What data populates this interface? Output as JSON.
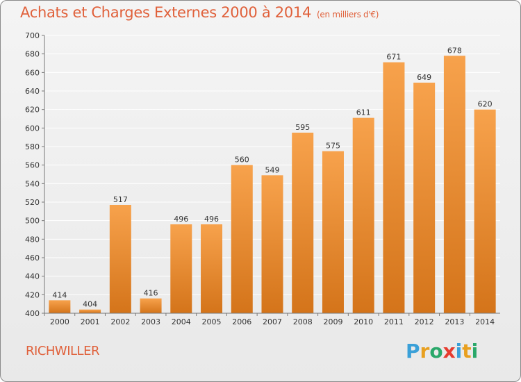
{
  "header": {
    "title": "Achats et Charges Externes 2000 à 2014",
    "subtitle": "(en milliers d'€)"
  },
  "footer": {
    "place": "RICHWILLER",
    "logo": [
      "P",
      "r",
      "o",
      "x",
      "i",
      "t",
      "i"
    ],
    "logo_colors": [
      "#3aa0d8",
      "#e8a020",
      "#2aa86a",
      "#e63b2e",
      "#3aa0d8",
      "#e8a020",
      "#2aa86a"
    ]
  },
  "colors": {
    "bar_light": "#f7a24c",
    "bar_dark": "#d4741a",
    "grid": "#ffffff",
    "axis_text": "#333333",
    "title": "#e0603a"
  },
  "chart_data": {
    "type": "bar",
    "title": "Achats et Charges Externes 2000 à 2014",
    "unit": "(en milliers d'€)",
    "categories": [
      "2000",
      "2001",
      "2002",
      "2003",
      "2004",
      "2005",
      "2006",
      "2007",
      "2008",
      "2009",
      "2010",
      "2011",
      "2012",
      "2013",
      "2014"
    ],
    "values": [
      414,
      404,
      517,
      416,
      496,
      496,
      560,
      549,
      595,
      575,
      611,
      671,
      649,
      678,
      620
    ],
    "ylim": [
      400,
      700
    ],
    "yticks": [
      400,
      420,
      440,
      460,
      480,
      500,
      520,
      540,
      560,
      580,
      600,
      620,
      640,
      660,
      680,
      700
    ],
    "xlabel": "",
    "ylabel": "",
    "grid": true
  }
}
